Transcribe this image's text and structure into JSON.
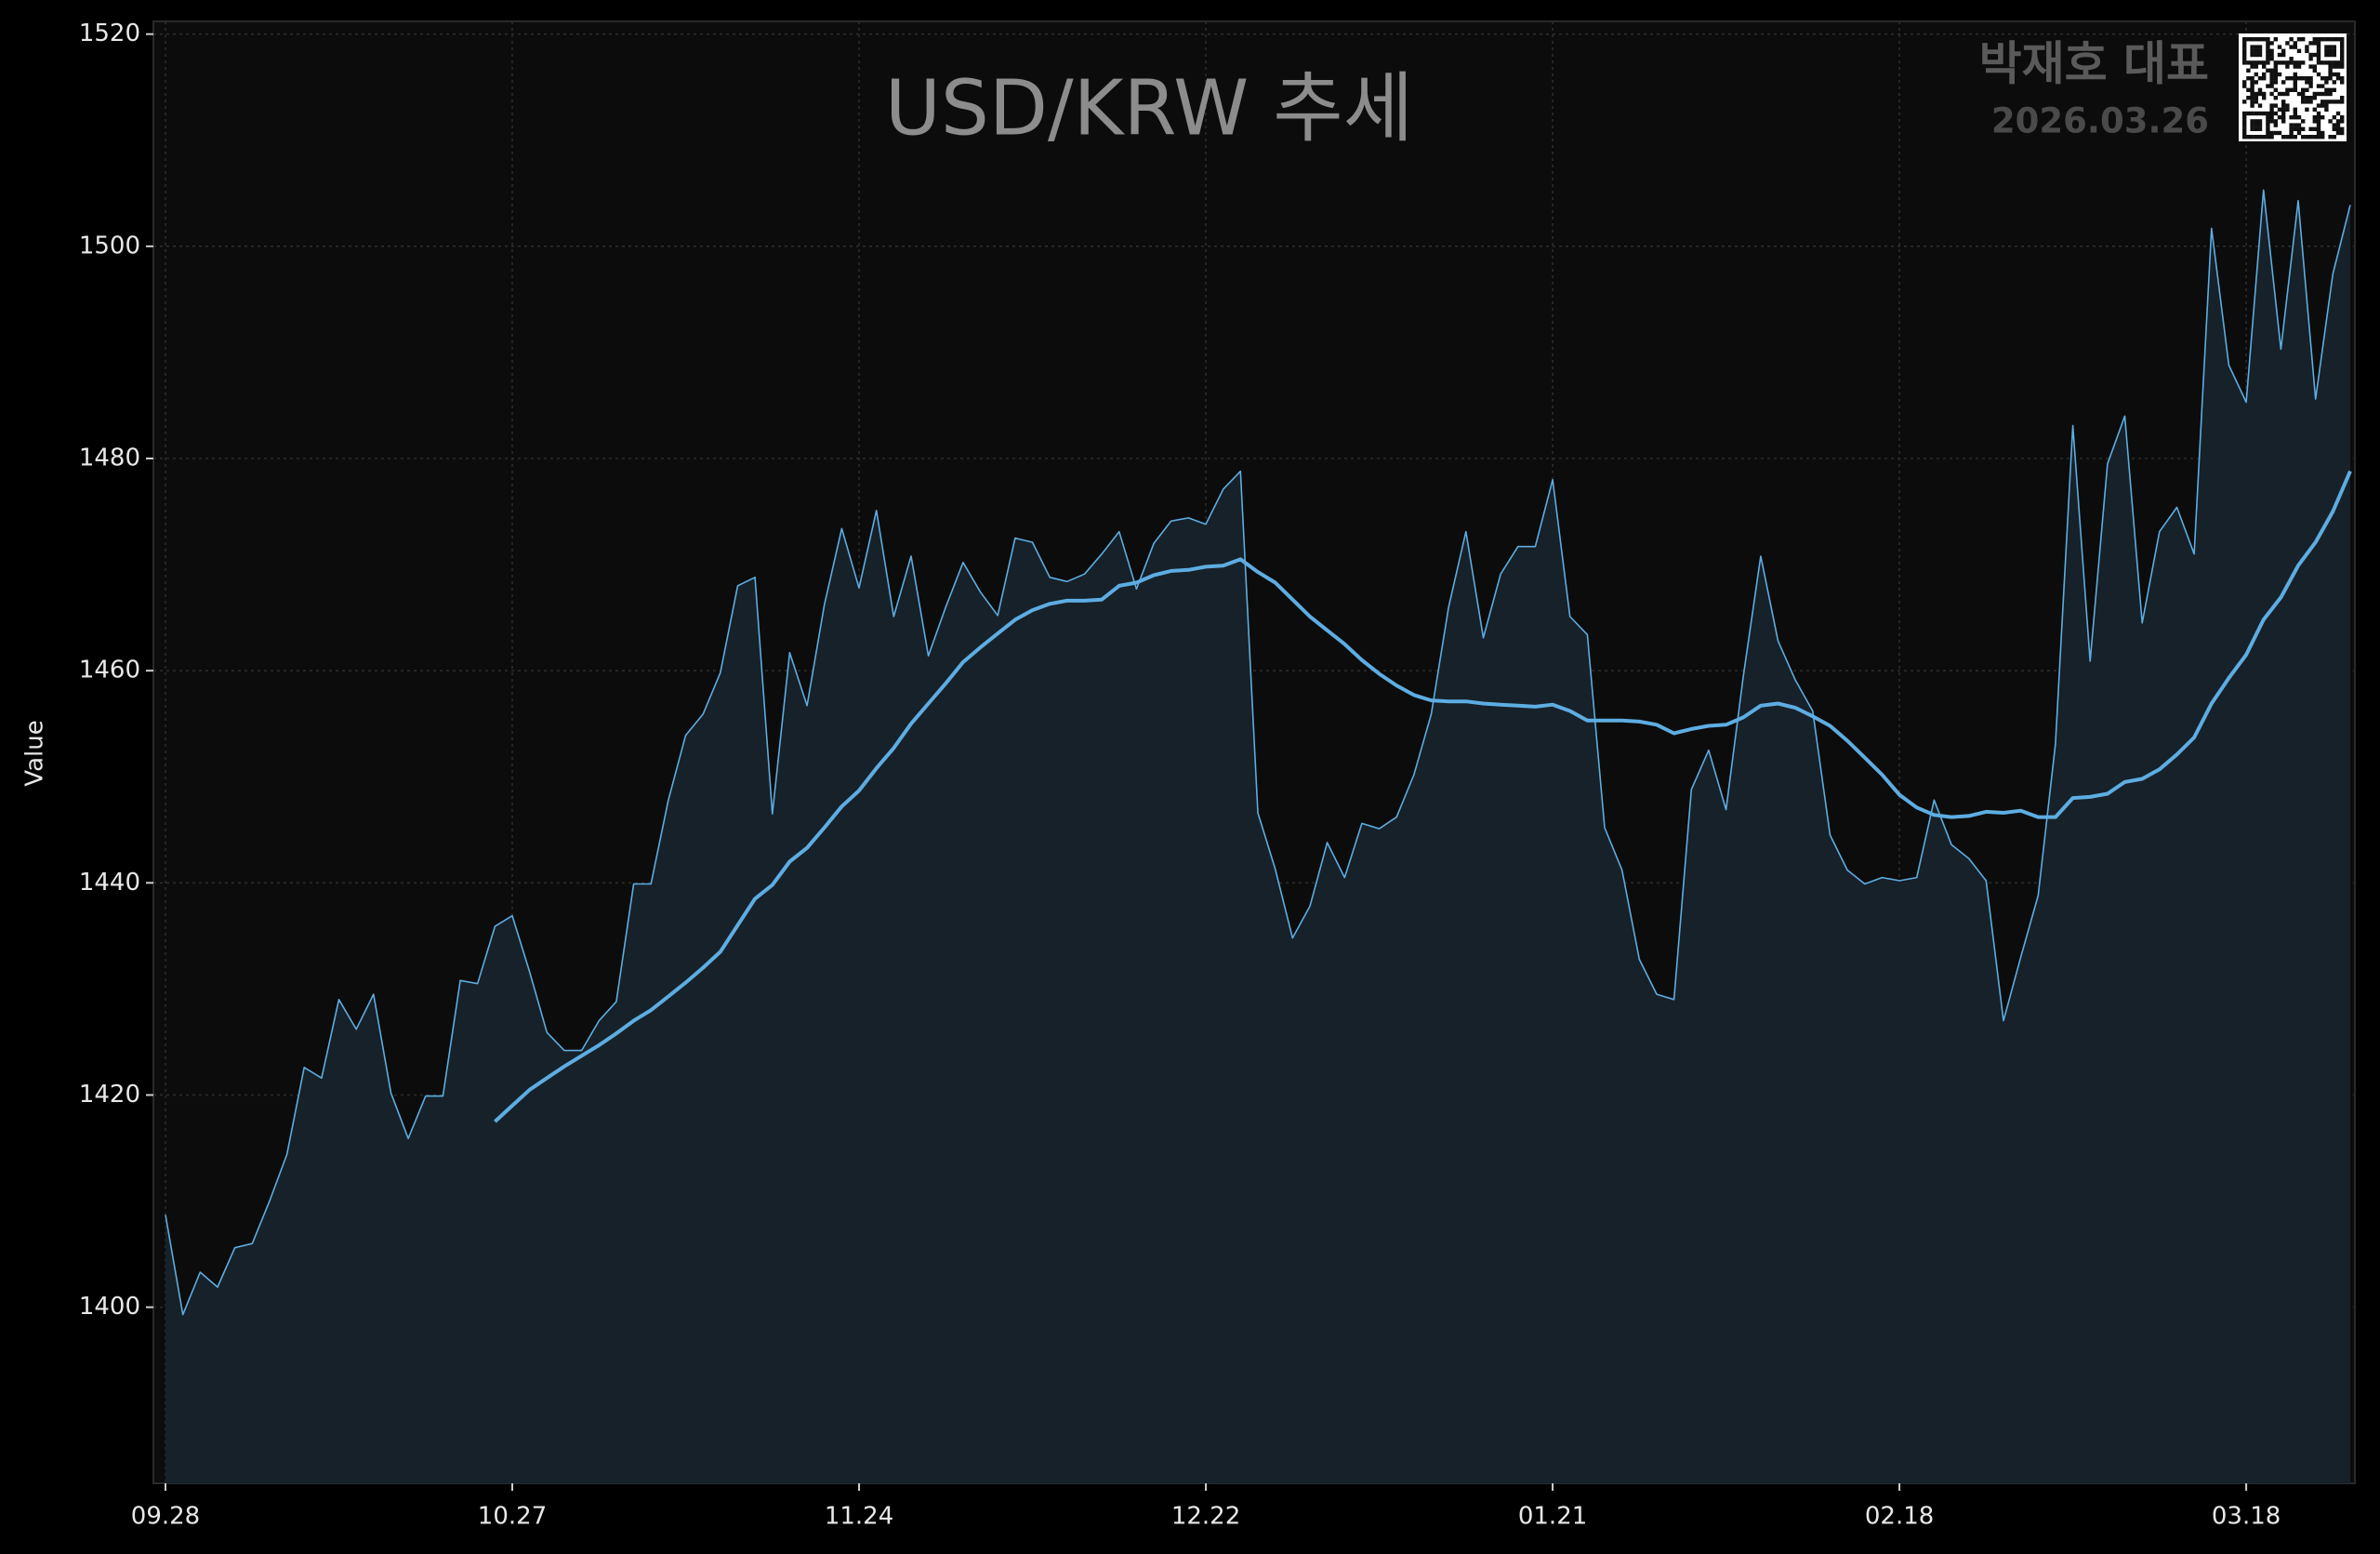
{
  "chart_data": {
    "type": "line",
    "title": "USD/KRW 추세",
    "watermark": "박재호 대표",
    "date": "2026.03.26",
    "ylabel": "Value",
    "categories": [
      "09.28",
      null,
      null,
      null,
      null,
      null,
      null,
      null,
      null,
      null,
      null,
      null,
      null,
      null,
      null,
      null,
      null,
      null,
      null,
      null,
      "10.27",
      null,
      null,
      null,
      null,
      null,
      null,
      null,
      null,
      null,
      null,
      null,
      null,
      null,
      null,
      null,
      null,
      null,
      null,
      null,
      "11.24",
      null,
      null,
      null,
      null,
      null,
      null,
      null,
      null,
      null,
      null,
      null,
      null,
      null,
      null,
      null,
      null,
      null,
      null,
      null,
      "12.22",
      null,
      null,
      null,
      null,
      null,
      null,
      null,
      null,
      null,
      null,
      null,
      null,
      null,
      null,
      null,
      null,
      null,
      null,
      null,
      "01.21",
      null,
      null,
      null,
      null,
      null,
      null,
      null,
      null,
      null,
      null,
      null,
      null,
      null,
      null,
      null,
      null,
      null,
      null,
      null,
      "02.18",
      null,
      null,
      null,
      null,
      null,
      null,
      null,
      null,
      null,
      null,
      null,
      null,
      null,
      null,
      null,
      null,
      null,
      null,
      null,
      "03.18",
      null,
      null,
      null,
      null,
      null,
      null
    ],
    "series": [
      {
        "color": "#5dade2",
        "fill": "#172129",
        "width": 1.6,
        "values": [
          1408.7,
          1399.3,
          1403.3,
          1401.9,
          1405.6,
          1406,
          1410,
          1414.4,
          1422.6,
          1421.6,
          1429,
          1426.2,
          1429.5,
          1420.2,
          1415.9,
          1419.9,
          1419.9,
          1430.8,
          1430.5,
          1435.9,
          1436.9,
          1431.6,
          1425.9,
          1424.2,
          1424.2,
          1427,
          1428.8,
          1439.9,
          1439.9,
          1447.8,
          1453.9,
          1455.9,
          1459.8,
          1468,
          1468.8,
          1446.5,
          1461.7,
          1456.7,
          1466.2,
          1473.4,
          1467.8,
          1475.1,
          1465.1,
          1470.8,
          1461.4,
          1466,
          1470.2,
          1467.4,
          1465.2,
          1472.5,
          1472.1,
          1468.8,
          1468.4,
          1469.1,
          1471,
          1473.1,
          1467.7,
          1472,
          1474.1,
          1474.4,
          1473.8,
          1477.1,
          1478.8,
          1446.6,
          1441.3,
          1434.8,
          1437.8,
          1443.8,
          1440.5,
          1445.6,
          1445.1,
          1446.2,
          1450.2,
          1455.9,
          1466,
          1473.1,
          1463.1,
          1469.1,
          1471.7,
          1471.7,
          1478,
          1465.1,
          1463.4,
          1445.2,
          1441.2,
          1432.8,
          1429.5,
          1429,
          1448.8,
          1452.5,
          1446.9,
          1459.5,
          1470.8,
          1462.8,
          1459.1,
          1456.2,
          1444.5,
          1441.2,
          1439.9,
          1440.5,
          1440.2,
          1440.5,
          1447.8,
          1443.6,
          1442.3,
          1440.2,
          1427,
          1433,
          1438.8,
          1453.1,
          1483.1,
          1460.9,
          1479.5,
          1484,
          1464.5,
          1473.1,
          1475.4,
          1471,
          1501.7,
          1488.8,
          1485.3,
          1505.3,
          1490.3,
          1504.3,
          1485.6,
          1497.4,
          1503.9
        ]
      },
      {
        "color": "#5dade2",
        "width": 4,
        "values": [
          null,
          null,
          null,
          null,
          null,
          null,
          null,
          null,
          null,
          null,
          null,
          null,
          null,
          null,
          null,
          null,
          null,
          null,
          null,
          1417.5,
          1419,
          1420.5,
          1421.6,
          1422.7,
          1423.7,
          1424.7,
          1425.8,
          1427,
          1428,
          1429.3,
          1430.6,
          1432,
          1433.5,
          1436,
          1438.5,
          1439.8,
          1442,
          1443.3,
          1445.2,
          1447.2,
          1448.7,
          1450.8,
          1452.7,
          1455,
          1456.9,
          1458.8,
          1460.8,
          1462.2,
          1463.5,
          1464.8,
          1465.7,
          1466.3,
          1466.6,
          1466.6,
          1466.7,
          1468,
          1468.3,
          1469,
          1469.4,
          1469.5,
          1469.8,
          1469.9,
          1470.5,
          1469.3,
          1468.3,
          1466.7,
          1465.1,
          1463.8,
          1462.5,
          1461,
          1459.7,
          1458.6,
          1457.7,
          1457.2,
          1457.1,
          1457.1,
          1456.9,
          1456.8,
          1456.7,
          1456.6,
          1456.8,
          1456.2,
          1455.3,
          1455.3,
          1455.3,
          1455.2,
          1454.9,
          1454.1,
          1454.5,
          1454.8,
          1454.9,
          1455.6,
          1456.7,
          1456.9,
          1456.5,
          1455.7,
          1454.8,
          1453.4,
          1451.8,
          1450.2,
          1448.3,
          1447.1,
          1446.4,
          1446.2,
          1446.3,
          1446.7,
          1446.6,
          1446.8,
          1446.2,
          1446.2,
          1448,
          1448.1,
          1448.4,
          1449.5,
          1449.8,
          1450.7,
          1452.1,
          1453.7,
          1456.9,
          1459.3,
          1461.5,
          1464.8,
          1466.9,
          1469.9,
          1472.1,
          1475,
          1478.8
        ]
      }
    ],
    "ylim": [
      1383.4,
      1521.2
    ],
    "yticks": [
      1400,
      1420,
      1440,
      1460,
      1480,
      1500,
      1520
    ],
    "grid": true
  }
}
